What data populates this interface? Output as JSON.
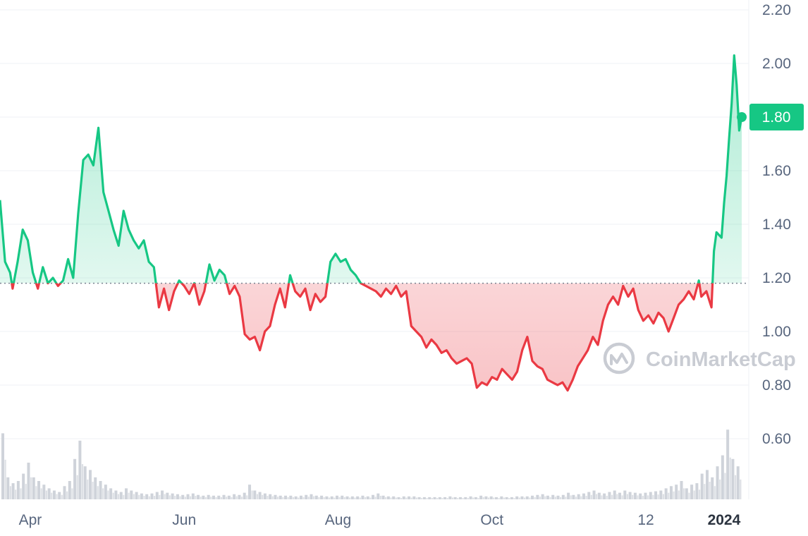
{
  "chart_data": {
    "type": "line",
    "title": "",
    "xlabel": "",
    "ylabel": "",
    "ylim": [
      0.45,
      2.25
    ],
    "y_ticks": [
      "2.20",
      "2.00",
      "1.80",
      "1.60",
      "1.40",
      "1.20",
      "1.00",
      "0.80",
      "0.60"
    ],
    "y_tick_values": [
      2.2,
      2.0,
      1.8,
      1.6,
      1.4,
      1.2,
      1.0,
      0.8,
      0.6
    ],
    "x_ticks": [
      {
        "label": "Apr",
        "date": "2023-04-01",
        "bold": false
      },
      {
        "label": "Jun",
        "date": "2023-06-01",
        "bold": false
      },
      {
        "label": "Aug",
        "date": "2023-08-01",
        "bold": false
      },
      {
        "label": "Oct",
        "date": "2023-10-01",
        "bold": false
      },
      {
        "label": "12",
        "date": "2023-12-01",
        "bold": false
      },
      {
        "label": "2024",
        "date": "2024-01-01",
        "bold": true
      }
    ],
    "x_range": [
      "2023-03-20",
      "2024-01-08"
    ],
    "baseline": 1.18,
    "current_price_label": "1.80",
    "current_price": 1.8,
    "up_color": "#16c784",
    "down_color": "#ea3943",
    "grid": true,
    "series": [
      {
        "points": [
          [
            "2023-03-20",
            1.49
          ],
          [
            "2023-03-22",
            1.26
          ],
          [
            "2023-03-24",
            1.22
          ],
          [
            "2023-03-25",
            1.16
          ],
          [
            "2023-03-27",
            1.26
          ],
          [
            "2023-03-29",
            1.38
          ],
          [
            "2023-03-31",
            1.34
          ],
          [
            "2023-04-02",
            1.22
          ],
          [
            "2023-04-04",
            1.16
          ],
          [
            "2023-04-06",
            1.24
          ],
          [
            "2023-04-08",
            1.18
          ],
          [
            "2023-04-10",
            1.2
          ],
          [
            "2023-04-12",
            1.17
          ],
          [
            "2023-04-14",
            1.19
          ],
          [
            "2023-04-16",
            1.27
          ],
          [
            "2023-04-18",
            1.2
          ],
          [
            "2023-04-20",
            1.44
          ],
          [
            "2023-04-22",
            1.64
          ],
          [
            "2023-04-24",
            1.66
          ],
          [
            "2023-04-26",
            1.62
          ],
          [
            "2023-04-28",
            1.76
          ],
          [
            "2023-04-30",
            1.52
          ],
          [
            "2023-05-02",
            1.45
          ],
          [
            "2023-05-04",
            1.38
          ],
          [
            "2023-05-06",
            1.32
          ],
          [
            "2023-05-08",
            1.45
          ],
          [
            "2023-05-10",
            1.38
          ],
          [
            "2023-05-12",
            1.34
          ],
          [
            "2023-05-14",
            1.31
          ],
          [
            "2023-05-16",
            1.34
          ],
          [
            "2023-05-18",
            1.26
          ],
          [
            "2023-05-20",
            1.24
          ],
          [
            "2023-05-22",
            1.09
          ],
          [
            "2023-05-24",
            1.16
          ],
          [
            "2023-05-26",
            1.08
          ],
          [
            "2023-05-28",
            1.15
          ],
          [
            "2023-05-30",
            1.19
          ],
          [
            "2023-06-01",
            1.17
          ],
          [
            "2023-06-03",
            1.14
          ],
          [
            "2023-06-05",
            1.18
          ],
          [
            "2023-06-07",
            1.1
          ],
          [
            "2023-06-09",
            1.15
          ],
          [
            "2023-06-11",
            1.25
          ],
          [
            "2023-06-13",
            1.19
          ],
          [
            "2023-06-15",
            1.23
          ],
          [
            "2023-06-17",
            1.21
          ],
          [
            "2023-06-19",
            1.14
          ],
          [
            "2023-06-21",
            1.17
          ],
          [
            "2023-06-23",
            1.13
          ],
          [
            "2023-06-25",
            0.99
          ],
          [
            "2023-06-27",
            0.97
          ],
          [
            "2023-06-29",
            0.98
          ],
          [
            "2023-07-01",
            0.93
          ],
          [
            "2023-07-03",
            1.0
          ],
          [
            "2023-07-05",
            1.02
          ],
          [
            "2023-07-07",
            1.1
          ],
          [
            "2023-07-09",
            1.16
          ],
          [
            "2023-07-11",
            1.09
          ],
          [
            "2023-07-13",
            1.21
          ],
          [
            "2023-07-15",
            1.15
          ],
          [
            "2023-07-17",
            1.13
          ],
          [
            "2023-07-19",
            1.16
          ],
          [
            "2023-07-21",
            1.08
          ],
          [
            "2023-07-23",
            1.14
          ],
          [
            "2023-07-25",
            1.11
          ],
          [
            "2023-07-27",
            1.13
          ],
          [
            "2023-07-29",
            1.26
          ],
          [
            "2023-07-31",
            1.29
          ],
          [
            "2023-08-02",
            1.26
          ],
          [
            "2023-08-04",
            1.27
          ],
          [
            "2023-08-06",
            1.23
          ],
          [
            "2023-08-08",
            1.21
          ],
          [
            "2023-08-10",
            1.18
          ],
          [
            "2023-08-12",
            1.17
          ],
          [
            "2023-08-14",
            1.16
          ],
          [
            "2023-08-16",
            1.15
          ],
          [
            "2023-08-18",
            1.13
          ],
          [
            "2023-08-20",
            1.16
          ],
          [
            "2023-08-22",
            1.14
          ],
          [
            "2023-08-24",
            1.17
          ],
          [
            "2023-08-26",
            1.13
          ],
          [
            "2023-08-28",
            1.15
          ],
          [
            "2023-08-30",
            1.02
          ],
          [
            "2023-09-01",
            1.0
          ],
          [
            "2023-09-03",
            0.98
          ],
          [
            "2023-09-05",
            0.94
          ],
          [
            "2023-09-07",
            0.97
          ],
          [
            "2023-09-09",
            0.95
          ],
          [
            "2023-09-11",
            0.92
          ],
          [
            "2023-09-13",
            0.93
          ],
          [
            "2023-09-15",
            0.9
          ],
          [
            "2023-09-17",
            0.88
          ],
          [
            "2023-09-19",
            0.89
          ],
          [
            "2023-09-21",
            0.9
          ],
          [
            "2023-09-23",
            0.88
          ],
          [
            "2023-09-25",
            0.79
          ],
          [
            "2023-09-27",
            0.81
          ],
          [
            "2023-09-29",
            0.8
          ],
          [
            "2023-10-01",
            0.83
          ],
          [
            "2023-10-03",
            0.82
          ],
          [
            "2023-10-05",
            0.86
          ],
          [
            "2023-10-07",
            0.84
          ],
          [
            "2023-10-09",
            0.82
          ],
          [
            "2023-10-11",
            0.85
          ],
          [
            "2023-10-13",
            0.93
          ],
          [
            "2023-10-15",
            0.98
          ],
          [
            "2023-10-17",
            0.89
          ],
          [
            "2023-10-19",
            0.87
          ],
          [
            "2023-10-21",
            0.86
          ],
          [
            "2023-10-23",
            0.82
          ],
          [
            "2023-10-25",
            0.81
          ],
          [
            "2023-10-27",
            0.8
          ],
          [
            "2023-10-29",
            0.81
          ],
          [
            "2023-10-31",
            0.78
          ],
          [
            "2023-11-02",
            0.82
          ],
          [
            "2023-11-04",
            0.87
          ],
          [
            "2023-11-06",
            0.9
          ],
          [
            "2023-11-08",
            0.93
          ],
          [
            "2023-11-10",
            0.98
          ],
          [
            "2023-11-12",
            0.95
          ],
          [
            "2023-11-14",
            1.04
          ],
          [
            "2023-11-16",
            1.1
          ],
          [
            "2023-11-18",
            1.13
          ],
          [
            "2023-11-20",
            1.1
          ],
          [
            "2023-11-22",
            1.17
          ],
          [
            "2023-11-24",
            1.13
          ],
          [
            "2023-11-26",
            1.16
          ],
          [
            "2023-11-28",
            1.08
          ],
          [
            "2023-11-30",
            1.04
          ],
          [
            "2023-12-02",
            1.06
          ],
          [
            "2023-12-04",
            1.03
          ],
          [
            "2023-12-06",
            1.07
          ],
          [
            "2023-12-08",
            1.05
          ],
          [
            "2023-12-10",
            1.0
          ],
          [
            "2023-12-12",
            1.05
          ],
          [
            "2023-12-14",
            1.1
          ],
          [
            "2023-12-16",
            1.12
          ],
          [
            "2023-12-18",
            1.15
          ],
          [
            "2023-12-20",
            1.12
          ],
          [
            "2023-12-22",
            1.19
          ],
          [
            "2023-12-23",
            1.13
          ],
          [
            "2023-12-25",
            1.15
          ],
          [
            "2023-12-27",
            1.09
          ],
          [
            "2023-12-28",
            1.3
          ],
          [
            "2023-12-29",
            1.37
          ],
          [
            "2023-12-31",
            1.35
          ],
          [
            "2024-01-01",
            1.48
          ],
          [
            "2024-01-02",
            1.58
          ],
          [
            "2024-01-03",
            1.72
          ],
          [
            "2024-01-04",
            1.85
          ],
          [
            "2024-01-05",
            2.03
          ],
          [
            "2024-01-06",
            1.92
          ],
          [
            "2024-01-07",
            1.75
          ],
          [
            "2024-01-08",
            1.8
          ]
        ]
      }
    ],
    "volume": [
      0.9,
      0.3,
      0.22,
      0.25,
      0.35,
      0.5,
      0.3,
      0.25,
      0.2,
      0.15,
      0.12,
      0.1,
      0.18,
      0.25,
      0.55,
      0.8,
      0.45,
      0.4,
      0.3,
      0.25,
      0.2,
      0.15,
      0.12,
      0.1,
      0.15,
      0.12,
      0.1,
      0.08,
      0.07,
      0.08,
      0.1,
      0.12,
      0.09,
      0.08,
      0.07,
      0.06,
      0.07,
      0.08,
      0.06,
      0.05,
      0.06,
      0.05,
      0.05,
      0.06,
      0.05,
      0.07,
      0.06,
      0.09,
      0.2,
      0.12,
      0.1,
      0.08,
      0.07,
      0.06,
      0.05,
      0.05,
      0.05,
      0.04,
      0.05,
      0.06,
      0.07,
      0.05,
      0.05,
      0.04,
      0.04,
      0.05,
      0.05,
      0.04,
      0.04,
      0.04,
      0.05,
      0.04,
      0.06,
      0.08,
      0.05,
      0.04,
      0.04,
      0.03,
      0.04,
      0.04,
      0.04,
      0.03,
      0.03,
      0.03,
      0.03,
      0.03,
      0.03,
      0.04,
      0.03,
      0.03,
      0.03,
      0.04,
      0.03,
      0.05,
      0.04,
      0.04,
      0.03,
      0.04,
      0.03,
      0.03,
      0.04,
      0.04,
      0.04,
      0.05,
      0.06,
      0.07,
      0.05,
      0.06,
      0.05,
      0.06,
      0.09,
      0.06,
      0.07,
      0.08,
      0.1,
      0.12,
      0.09,
      0.08,
      0.1,
      0.12,
      0.09,
      0.12,
      0.1,
      0.09,
      0.08,
      0.09,
      0.1,
      0.11,
      0.12,
      0.15,
      0.18,
      0.2,
      0.25,
      0.15,
      0.2,
      0.22,
      0.35,
      0.4,
      0.3,
      0.45,
      0.6,
      0.95,
      0.55,
      0.45
    ]
  },
  "watermark": {
    "text": "CoinMarketCap"
  }
}
